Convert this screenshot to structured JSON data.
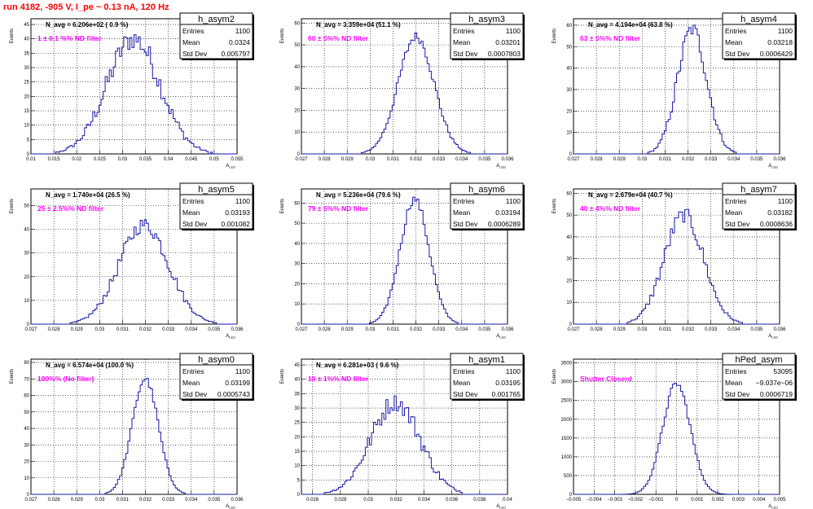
{
  "page_title": "run 4182,  -905 V, I_pe ~ 0.13 nA, 120 Hz",
  "chart_data": [
    {
      "type": "histogram",
      "name": "h_asym2",
      "n_avg": "N_avg = 6.206e+02 ( 0.9 %)",
      "filter_label": "1 ± 0.1 %% ND filter",
      "stats": {
        "entries": "1100",
        "mean": "0.0324",
        "std_dev": "0.005797"
      },
      "xlabel": "A_LED",
      "ylabel": "Events",
      "xlim": [
        0.01,
        0.055
      ],
      "ylim": [
        0,
        47
      ],
      "xticks": [
        "0.01",
        "0.015",
        "0.02",
        "0.025",
        "0.03",
        "0.035",
        "0.04",
        "0.045",
        "0.05",
        "0.055"
      ],
      "yticks": [
        0,
        5,
        10,
        15,
        20,
        25,
        30,
        35,
        40,
        45
      ],
      "profile": {
        "mean": 0.0324,
        "sigma": 0.0058,
        "peak": 40,
        "noise": 0.3
      }
    },
    {
      "type": "histogram",
      "name": "h_asym3",
      "n_avg": "N_avg = 3.359e+04 (51.1 %)",
      "filter_label": "60 ± 5%% ND filter",
      "stats": {
        "entries": "1100",
        "mean": "0.03201",
        "std_dev": "0.0007803"
      },
      "xlabel": "A_LED",
      "ylabel": "Events",
      "xlim": [
        0.027,
        0.036
      ],
      "ylim": [
        0,
        62
      ],
      "xticks": [
        "0.027",
        "0.028",
        "0.029",
        "0.03",
        "0.031",
        "0.032",
        "0.033",
        "0.034",
        "0.035",
        "0.036"
      ],
      "yticks": [
        0,
        10,
        20,
        30,
        40,
        50,
        60
      ],
      "profile": {
        "mean": 0.03201,
        "sigma": 0.00078,
        "peak": 54,
        "noise": 0.12
      }
    },
    {
      "type": "histogram",
      "name": "h_asym4",
      "n_avg": "N_avg = 4.194e+04 (63.8 %)",
      "filter_label": "63 ± 5%% ND filter",
      "stats": {
        "entries": "1100",
        "mean": "0.03218",
        "std_dev": "0.0006429"
      },
      "xlabel": "A_LED",
      "ylabel": "Events",
      "xlim": [
        0.027,
        0.036
      ],
      "ylim": [
        0,
        63
      ],
      "xticks": [
        "0.027",
        "0.028",
        "0.029",
        "0.03",
        "0.031",
        "0.032",
        "0.033",
        "0.034",
        "0.035",
        "0.036"
      ],
      "yticks": [
        0,
        10,
        20,
        30,
        40,
        50,
        60
      ],
      "profile": {
        "mean": 0.03218,
        "sigma": 0.00064,
        "peak": 58,
        "noise": 0.2
      }
    },
    {
      "type": "histogram",
      "name": "h_asym5",
      "n_avg": "N_avg = 1.740e+04 (26.5 %)",
      "filter_label": "25 ± 2.5%% ND filter",
      "stats": {
        "entries": "1100",
        "mean": "0.03193",
        "std_dev": "0.001082"
      },
      "xlabel": "A_LED",
      "ylabel": "Events",
      "xlim": [
        0.027,
        0.036
      ],
      "ylim": [
        0,
        57
      ],
      "xticks": [
        "0.027",
        "0.028",
        "0.029",
        "0.03",
        "0.031",
        "0.032",
        "0.033",
        "0.034",
        "0.035",
        "0.036"
      ],
      "yticks": [
        0,
        10,
        20,
        30,
        40,
        50
      ],
      "profile": {
        "mean": 0.03193,
        "sigma": 0.00108,
        "peak": 42,
        "noise": 0.22
      }
    },
    {
      "type": "histogram",
      "name": "h_asym6",
      "n_avg": "N_avg = 5.236e+04 (79.6 %)",
      "filter_label": "79 ± 5%% ND filter",
      "stats": {
        "entries": "1100",
        "mean": "0.03194",
        "std_dev": "0.0006289"
      },
      "xlabel": "A_LED",
      "ylabel": "Events",
      "xlim": [
        0.027,
        0.036
      ],
      "ylim": [
        0,
        67
      ],
      "xticks": [
        "0.027",
        "0.028",
        "0.029",
        "0.03",
        "0.031",
        "0.032",
        "0.033",
        "0.034",
        "0.035",
        "0.036"
      ],
      "yticks": [
        0,
        10,
        20,
        30,
        40,
        50,
        60
      ],
      "profile": {
        "mean": 0.03194,
        "sigma": 0.00063,
        "peak": 62,
        "noise": 0.1
      }
    },
    {
      "type": "histogram",
      "name": "h_asym7",
      "n_avg": "N_avg = 2.679e+04 (40.7 %)",
      "filter_label": "40 ± 4%% ND filter",
      "stats": {
        "entries": "1100",
        "mean": "0.03182",
        "std_dev": "0.0008636"
      },
      "xlabel": "A_LED",
      "ylabel": "Events",
      "xlim": [
        0.027,
        0.036
      ],
      "ylim": [
        0,
        62
      ],
      "xticks": [
        "0.027",
        "0.028",
        "0.029",
        "0.03",
        "0.031",
        "0.032",
        "0.033",
        "0.034",
        "0.035",
        "0.036"
      ],
      "yticks": [
        0,
        10,
        20,
        30,
        40,
        50,
        60
      ],
      "profile": {
        "mean": 0.03182,
        "sigma": 0.00086,
        "peak": 50,
        "noise": 0.22
      }
    },
    {
      "type": "histogram",
      "name": "h_asym0",
      "n_avg": "N_avg = 6.574e+04 (100.0 %)",
      "filter_label": "100%% (No filter)",
      "stats": {
        "entries": "1100",
        "mean": "0.03199",
        "std_dev": "0.0005743"
      },
      "xlabel": "A_LED",
      "ylabel": "Events",
      "xlim": [
        0.027,
        0.036
      ],
      "ylim": [
        0,
        82
      ],
      "xticks": [
        "0.027",
        "0.028",
        "0.029",
        "0.03",
        "0.031",
        "0.032",
        "0.033",
        "0.034",
        "0.035",
        "0.036"
      ],
      "yticks": [
        0,
        10,
        20,
        30,
        40,
        50,
        60,
        70,
        80
      ],
      "profile": {
        "mean": 0.03199,
        "sigma": 0.00057,
        "peak": 70,
        "noise": 0.08
      }
    },
    {
      "type": "histogram",
      "name": "h_asym1",
      "n_avg": "N_avg = 6.281e+03 ( 9.6 %)",
      "filter_label": "10 ± 1%% ND filter",
      "stats": {
        "entries": "1100",
        "mean": "0.03195",
        "std_dev": "0.001765"
      },
      "xlabel": "A_LED",
      "ylabel": "Events",
      "xlim": [
        0.0252,
        0.04
      ],
      "ylim": [
        0,
        47
      ],
      "xticks": [
        "0.026",
        "0.028",
        "0.03",
        "0.032",
        "0.034",
        "0.036",
        "0.038",
        "0.04"
      ],
      "yticks": [
        0,
        5,
        10,
        15,
        20,
        25,
        30,
        35,
        40,
        45
      ],
      "profile": {
        "mean": 0.03195,
        "sigma": 0.00177,
        "peak": 32,
        "noise": 0.3
      }
    },
    {
      "type": "histogram",
      "name": "hPed_asym",
      "n_avg": "",
      "filter_label": "Shutter Closerd",
      "stats": {
        "entries": "53095",
        "mean": "−9.037e−06",
        "std_dev": "0.0006719"
      },
      "xlabel": "A_LED",
      "ylabel": "Events",
      "xlim": [
        -0.005,
        0.005
      ],
      "ylim": [
        0,
        3600
      ],
      "xticks": [
        "−0.005",
        "−0.004",
        "−0.003",
        "−0.002",
        "−0.001",
        "0",
        "0.001",
        "0.002",
        "0.003",
        "0.004",
        "0.005"
      ],
      "yticks": [
        0,
        500,
        1000,
        1500,
        2000,
        2500,
        3000,
        3500
      ],
      "profile": {
        "mean": 0.0,
        "sigma": 0.00067,
        "peak": 2950,
        "noise": 0.08
      }
    }
  ],
  "stat_labels": {
    "entries": "Entries",
    "mean": "Mean",
    "std_dev": "Std Dev"
  },
  "colors": {
    "title": "#ff0000",
    "hist_line": "#1a1aa6",
    "filter_text": "#ff00ff"
  }
}
